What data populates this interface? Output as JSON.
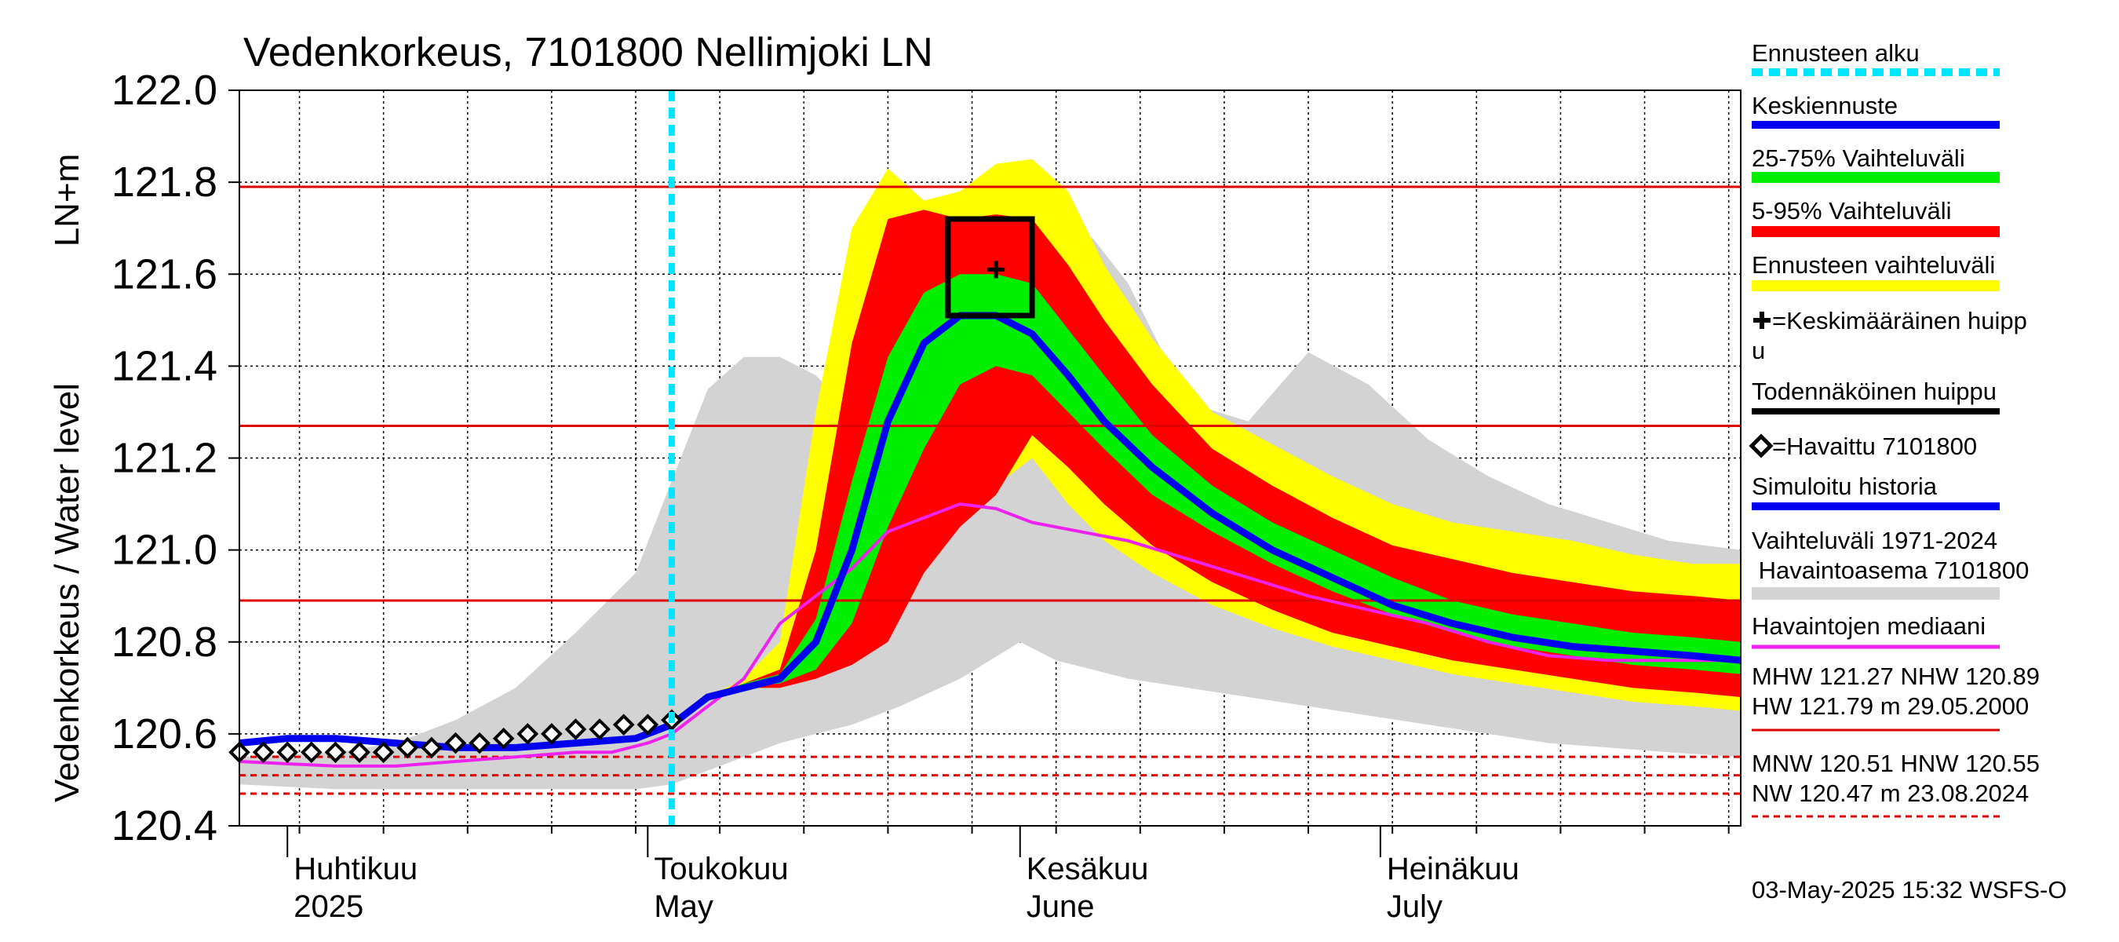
{
  "chart_data": {
    "type": "area",
    "title": "Vedenkorkeus, 7101800 Nellimjoki LN",
    "ylabel_unit": "LN+m",
    "ylabel": "Vedenkorkeus / Water level",
    "ylim": [
      120.4,
      122.0
    ],
    "yticks": [
      "120.4",
      "120.6",
      "120.8",
      "121.0",
      "121.2",
      "121.4",
      "121.6",
      "121.8",
      "122.0"
    ],
    "xlim": [
      "2025-03-28",
      "2025-07-31"
    ],
    "month_labels": [
      {
        "fi": "Huhtikuu",
        "en": "2025",
        "date": "2025-04-01"
      },
      {
        "fi": "Toukokuu",
        "en": "May",
        "date": "2025-05-01"
      },
      {
        "fi": "Kesäkuu",
        "en": "June",
        "date": "2025-06-01"
      },
      {
        "fi": "Heinäkuu",
        "en": "July",
        "date": "2025-07-01"
      }
    ],
    "grid": true,
    "forecast_start": "2025-05-03",
    "reference_lines": [
      {
        "name": "HW",
        "value": 121.79,
        "style": "solid"
      },
      {
        "name": "MHW",
        "value": 121.27,
        "style": "solid"
      },
      {
        "name": "NHW",
        "value": 120.89,
        "style": "solid"
      },
      {
        "name": "HNW",
        "value": 120.55,
        "style": "dashed"
      },
      {
        "name": "MNW",
        "value": 120.51,
        "style": "dashed"
      },
      {
        "name": "NW",
        "value": 120.47,
        "style": "dashed"
      }
    ],
    "probable_peak_box": {
      "x0": "2025-05-26",
      "x1": "2025-06-02",
      "y0": 121.51,
      "y1": 121.72
    },
    "mean_peak": {
      "date": "2025-05-30",
      "value": 121.61
    },
    "series": [
      {
        "name": "Vaihteluväli 1971-2024 Havaintoasema 7101800",
        "kind": "band",
        "color": "#d3d3d3",
        "x": [
          "2025-03-28",
          "2025-04-05",
          "2025-04-10",
          "2025-04-15",
          "2025-04-20",
          "2025-04-25",
          "2025-04-30",
          "2025-05-03",
          "2025-05-06",
          "2025-05-09",
          "2025-05-12",
          "2025-05-15",
          "2025-05-18",
          "2025-05-22",
          "2025-05-27",
          "2025-06-01",
          "2025-06-04",
          "2025-06-07",
          "2025-06-10",
          "2025-06-15",
          "2025-06-20",
          "2025-06-25",
          "2025-06-30",
          "2025-07-05",
          "2025-07-10",
          "2025-07-15",
          "2025-07-20",
          "2025-07-25",
          "2025-07-31"
        ],
        "low": [
          120.49,
          120.48,
          120.48,
          120.48,
          120.48,
          120.48,
          120.48,
          120.49,
          120.52,
          120.55,
          120.58,
          120.6,
          120.62,
          120.66,
          120.72,
          120.8,
          120.76,
          120.74,
          120.72,
          120.7,
          120.68,
          120.66,
          120.64,
          120.62,
          120.6,
          120.58,
          120.57,
          120.56,
          120.55
        ],
        "high": [
          120.55,
          120.56,
          120.58,
          120.63,
          120.7,
          120.82,
          120.95,
          121.15,
          121.35,
          121.42,
          121.42,
          121.38,
          121.3,
          121.52,
          121.78,
          121.78,
          121.6,
          121.68,
          121.58,
          121.32,
          121.28,
          121.43,
          121.36,
          121.24,
          121.16,
          121.1,
          121.06,
          121.02,
          121.0
        ]
      },
      {
        "name": "Ennusteen vaihteluväli",
        "kind": "band",
        "color": "#ffff00",
        "x": [
          "2025-05-03",
          "2025-05-06",
          "2025-05-09",
          "2025-05-12",
          "2025-05-15",
          "2025-05-18",
          "2025-05-21",
          "2025-05-24",
          "2025-05-27",
          "2025-05-30",
          "2025-06-02",
          "2025-06-05",
          "2025-06-08",
          "2025-06-12",
          "2025-06-17",
          "2025-06-22",
          "2025-06-27",
          "2025-07-02",
          "2025-07-07",
          "2025-07-12",
          "2025-07-17",
          "2025-07-22",
          "2025-07-27",
          "2025-07-31"
        ],
        "low": [
          120.62,
          120.68,
          120.7,
          120.7,
          120.72,
          120.78,
          120.92,
          121.05,
          121.12,
          121.14,
          121.2,
          121.1,
          121.02,
          120.95,
          120.88,
          120.83,
          120.79,
          120.76,
          120.73,
          120.71,
          120.69,
          120.67,
          120.66,
          120.65
        ],
        "high": [
          120.62,
          120.68,
          120.72,
          120.8,
          121.3,
          121.7,
          121.83,
          121.76,
          121.78,
          121.84,
          121.85,
          121.78,
          121.62,
          121.46,
          121.3,
          121.23,
          121.16,
          121.1,
          121.06,
          121.04,
          121.02,
          120.99,
          120.97,
          120.97
        ]
      },
      {
        "name": "5-95% Vaihteluväli",
        "kind": "band",
        "color": "#ff0000",
        "x": [
          "2025-05-03",
          "2025-05-06",
          "2025-05-09",
          "2025-05-12",
          "2025-05-15",
          "2025-05-18",
          "2025-05-21",
          "2025-05-24",
          "2025-05-27",
          "2025-05-30",
          "2025-06-02",
          "2025-06-05",
          "2025-06-08",
          "2025-06-12",
          "2025-06-17",
          "2025-06-22",
          "2025-06-27",
          "2025-07-02",
          "2025-07-07",
          "2025-07-12",
          "2025-07-17",
          "2025-07-22",
          "2025-07-27",
          "2025-07-31"
        ],
        "low": [
          120.62,
          120.68,
          120.7,
          120.7,
          120.72,
          120.75,
          120.8,
          120.95,
          121.05,
          121.12,
          121.25,
          121.18,
          121.1,
          121.01,
          120.93,
          120.87,
          120.82,
          120.79,
          120.76,
          120.74,
          120.72,
          120.7,
          120.69,
          120.68
        ],
        "high": [
          120.62,
          120.68,
          120.71,
          120.74,
          121.0,
          121.45,
          121.72,
          121.74,
          121.72,
          121.73,
          121.72,
          121.62,
          121.5,
          121.36,
          121.22,
          121.14,
          121.07,
          121.01,
          120.98,
          120.95,
          120.93,
          120.91,
          120.9,
          120.89
        ]
      },
      {
        "name": "25-75% Vaihteluväli",
        "kind": "band",
        "color": "#00ee00",
        "x": [
          "2025-05-03",
          "2025-05-06",
          "2025-05-09",
          "2025-05-12",
          "2025-05-15",
          "2025-05-18",
          "2025-05-21",
          "2025-05-24",
          "2025-05-27",
          "2025-05-30",
          "2025-06-02",
          "2025-06-05",
          "2025-06-08",
          "2025-06-12",
          "2025-06-17",
          "2025-06-22",
          "2025-06-27",
          "2025-07-02",
          "2025-07-07",
          "2025-07-12",
          "2025-07-17",
          "2025-07-22",
          "2025-07-27",
          "2025-07-31"
        ],
        "low": [
          120.62,
          120.68,
          120.7,
          120.71,
          120.74,
          120.84,
          121.05,
          121.22,
          121.36,
          121.4,
          121.38,
          121.3,
          121.22,
          121.12,
          121.04,
          120.97,
          120.91,
          120.86,
          120.82,
          120.79,
          120.77,
          120.75,
          120.74,
          120.73
        ],
        "high": [
          120.62,
          120.68,
          120.71,
          120.73,
          120.85,
          121.15,
          121.42,
          121.56,
          121.6,
          121.6,
          121.58,
          121.48,
          121.38,
          121.25,
          121.14,
          121.06,
          121.0,
          120.94,
          120.89,
          120.86,
          120.84,
          120.82,
          120.81,
          120.8
        ]
      },
      {
        "name": "Havaintojen mediaani",
        "kind": "line",
        "color": "#ee22ee",
        "x": [
          "2025-03-28",
          "2025-04-05",
          "2025-04-10",
          "2025-04-15",
          "2025-04-20",
          "2025-04-25",
          "2025-04-28",
          "2025-05-01",
          "2025-05-03",
          "2025-05-06",
          "2025-05-09",
          "2025-05-12",
          "2025-05-15",
          "2025-05-18",
          "2025-05-21",
          "2025-05-24",
          "2025-05-27",
          "2025-05-30",
          "2025-06-02",
          "2025-06-06",
          "2025-06-10",
          "2025-06-15",
          "2025-06-20",
          "2025-06-25",
          "2025-06-30",
          "2025-07-05",
          "2025-07-10",
          "2025-07-15",
          "2025-07-20",
          "2025-07-25",
          "2025-07-31"
        ],
        "values": [
          120.54,
          120.53,
          120.53,
          120.54,
          120.55,
          120.56,
          120.56,
          120.58,
          120.6,
          120.66,
          120.72,
          120.84,
          120.9,
          120.96,
          121.04,
          121.07,
          121.1,
          121.09,
          121.06,
          121.04,
          121.02,
          120.98,
          120.94,
          120.9,
          120.87,
          120.84,
          120.8,
          120.77,
          120.76,
          120.76,
          120.76
        ]
      },
      {
        "name": "Simuloitu historia",
        "kind": "line",
        "color": "#0000ee",
        "x": [
          "2025-03-28",
          "2025-04-01",
          "2025-04-05",
          "2025-04-10",
          "2025-04-15",
          "2025-04-20",
          "2025-04-25",
          "2025-04-30",
          "2025-05-03"
        ],
        "values": [
          120.58,
          120.59,
          120.59,
          120.58,
          120.57,
          120.57,
          120.58,
          120.59,
          120.62
        ]
      },
      {
        "name": "Keskiennuste",
        "kind": "line",
        "color": "#0000ee",
        "x": [
          "2025-05-03",
          "2025-05-06",
          "2025-05-09",
          "2025-05-12",
          "2025-05-15",
          "2025-05-18",
          "2025-05-21",
          "2025-05-24",
          "2025-05-27",
          "2025-05-30",
          "2025-06-02",
          "2025-06-05",
          "2025-06-08",
          "2025-06-12",
          "2025-06-17",
          "2025-06-22",
          "2025-06-27",
          "2025-07-02",
          "2025-07-07",
          "2025-07-12",
          "2025-07-17",
          "2025-07-22",
          "2025-07-27",
          "2025-07-31"
        ],
        "values": [
          120.62,
          120.68,
          120.7,
          120.72,
          120.8,
          121.0,
          121.28,
          121.45,
          121.51,
          121.51,
          121.47,
          121.38,
          121.28,
          121.18,
          121.08,
          121.0,
          120.94,
          120.88,
          120.84,
          120.81,
          120.79,
          120.78,
          120.77,
          120.76
        ]
      },
      {
        "name": "Havaittu 7101800",
        "kind": "markers",
        "color": "#000000",
        "x": [
          "2025-03-28",
          "2025-03-30",
          "2025-04-01",
          "2025-04-03",
          "2025-04-05",
          "2025-04-07",
          "2025-04-09",
          "2025-04-11",
          "2025-04-13",
          "2025-04-15",
          "2025-04-17",
          "2025-04-19",
          "2025-04-21",
          "2025-04-23",
          "2025-04-25",
          "2025-04-27",
          "2025-04-29",
          "2025-05-01",
          "2025-05-03"
        ],
        "values": [
          120.56,
          120.56,
          120.56,
          120.56,
          120.56,
          120.56,
          120.56,
          120.57,
          120.57,
          120.58,
          120.58,
          120.59,
          120.6,
          120.6,
          120.61,
          120.61,
          120.62,
          120.62,
          120.63
        ]
      }
    ]
  },
  "legend": {
    "forecast_start": "Ennusteen alku",
    "mean_forecast": "Keskiennuste",
    "range_25_75": "25-75% Vaihteluväli",
    "range_5_95": "5-95% Vaihteluväli",
    "forecast_range": "Ennusteen vaihteluväli",
    "mean_peak_line1": "=Keskimääräinen huipp",
    "mean_peak_line2": "u",
    "probable_peak": "Todennäköinen huippu",
    "observed": "=Havaittu 7101800",
    "simulated": "Simuloitu historia",
    "hist_range_line1": "Vaihteluväli 1971-2024",
    "hist_range_line2": " Havaintoasema 7101800",
    "median": "Havaintojen mediaani",
    "stats_high_line1": "MHW 121.27 NHW 120.89",
    "stats_high_line2": "HW 121.79 m 29.05.2000",
    "stats_low_line1": "MNW 120.51 HNW 120.55",
    "stats_low_line2": "NW 120.47 m 23.08.2024",
    "timestamp": "03-May-2025 15:32 WSFS-O"
  },
  "colors": {
    "forecast_start": "#00e5ff",
    "mean_forecast": "#0000ee",
    "range_25_75": "#00ee00",
    "range_5_95": "#ff0000",
    "forecast_range": "#ffff00",
    "probable_peak": "#000000",
    "simulated": "#0000ee",
    "hist_range": "#d3d3d3",
    "median": "#ee22ee",
    "reference_line": "#dd0000"
  }
}
